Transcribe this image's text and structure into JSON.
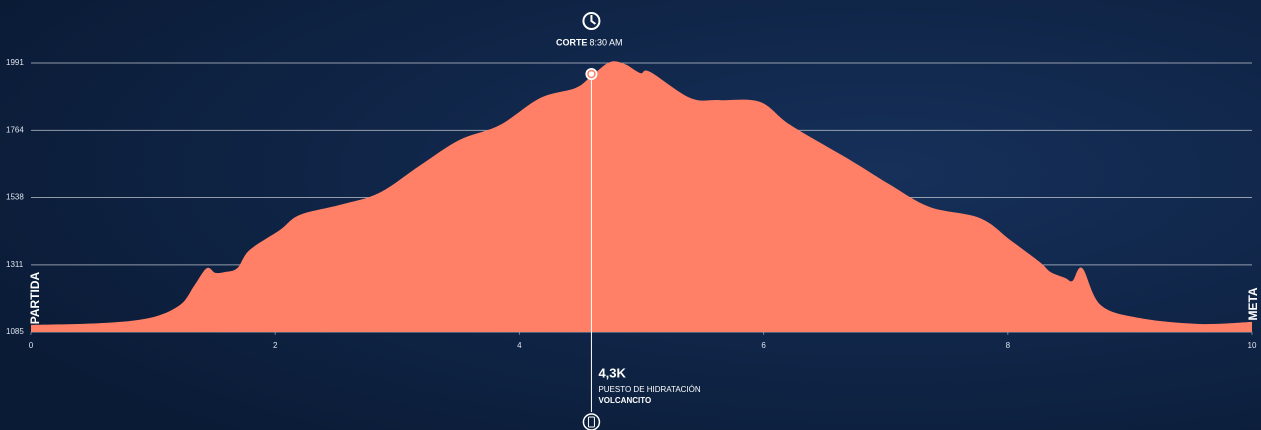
{
  "chart_data": {
    "type": "area",
    "x": [
      0,
      0.57,
      0.97,
      1.22,
      1.34,
      1.44,
      1.51,
      1.59,
      1.69,
      1.79,
      2.04,
      2.2,
      2.53,
      2.85,
      3.19,
      3.51,
      3.84,
      4.17,
      4.46,
      4.59,
      4.74,
      4.86,
      4.99,
      5.07,
      5.4,
      5.64,
      5.97,
      6.22,
      6.71,
      7.04,
      7.36,
      7.77,
      8.02,
      8.26,
      8.35,
      8.47,
      8.53,
      8.61,
      8.76,
      9.08,
      9.57,
      10
    ],
    "values": [
      1109,
      1115,
      1132,
      1176,
      1243,
      1300,
      1284,
      1287,
      1300,
      1361,
      1429,
      1479,
      1513,
      1553,
      1647,
      1732,
      1782,
      1873,
      1907,
      1947,
      1994,
      1988,
      1957,
      1961,
      1873,
      1866,
      1860,
      1782,
      1664,
      1580,
      1506,
      1469,
      1395,
      1321,
      1287,
      1267,
      1257,
      1300,
      1176,
      1132,
      1112,
      1119
    ],
    "color": "#ff8066",
    "xlim": [
      0,
      10
    ],
    "xticks": [
      0,
      2,
      4,
      6,
      8,
      10
    ],
    "ylim": [
      1085,
      1991
    ],
    "yticks": [
      1085,
      1311,
      1538,
      1764,
      1991
    ],
    "grid": true,
    "start_label": "PARTIDA",
    "end_label": "META",
    "marker": {
      "x": 4.59,
      "top_title": "CORTE",
      "top_time": "8:30 AM",
      "distance": "4,3K",
      "station_type": "PUESTO DE HIDRATACIÓN",
      "station_name": "VOLCANCITO"
    }
  }
}
